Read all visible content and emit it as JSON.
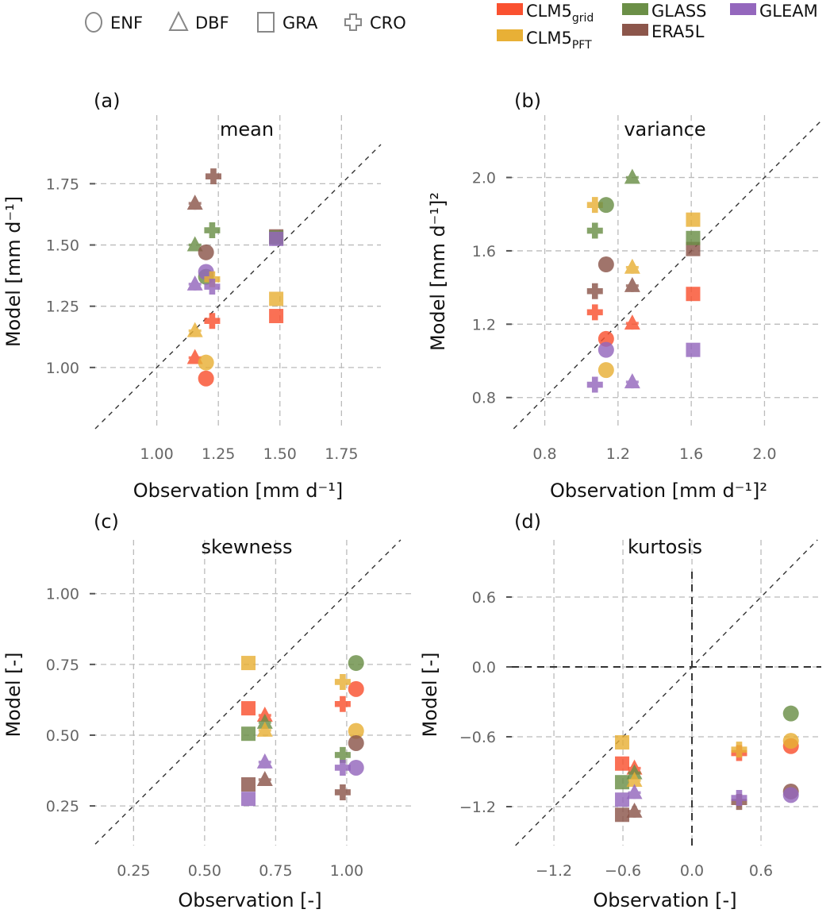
{
  "legend": {
    "shapes": [
      {
        "pft": "ENF",
        "shape": "circle"
      },
      {
        "pft": "DBF",
        "shape": "triangle"
      },
      {
        "pft": "GRA",
        "shape": "square"
      },
      {
        "pft": "CRO",
        "shape": "plus"
      }
    ],
    "models": [
      {
        "key": "CLM5grid",
        "base": "CLM5",
        "sub": "grid",
        "color": "#fa5130"
      },
      {
        "key": "GLASS",
        "base": "GLASS",
        "sub": "",
        "color": "#6b8f47"
      },
      {
        "key": "GLEAM",
        "base": "GLEAM",
        "sub": "",
        "color": "#9467bd"
      },
      {
        "key": "CLM5PFT",
        "base": "CLM5",
        "sub": "PFT",
        "color": "#e8b036"
      },
      {
        "key": "ERA5L",
        "base": "ERA5L",
        "sub": "",
        "color": "#8c564b"
      }
    ]
  },
  "chart_data": [
    {
      "type": "scatter",
      "panel": "(a)",
      "title": "mean",
      "xlabel": "Observation [mm d⁻¹]",
      "ylabel": "Model [mm d⁻¹]",
      "xlim": [
        0.75,
        1.91
      ],
      "ylim": [
        0.75,
        2.03
      ],
      "xticks": [
        1.0,
        1.25,
        1.5,
        1.75
      ],
      "xtick_labels": [
        "1.00",
        "1.25",
        "1.50",
        "1.75"
      ],
      "yticks": [
        1.0,
        1.25,
        1.5,
        1.75
      ],
      "ytick_labels": [
        "1.00",
        "1.25",
        "1.50",
        "1.75"
      ],
      "grid": true,
      "one_to_one_line": true,
      "points": [
        {
          "model": "ERA5L",
          "pft": "CRO",
          "x": 1.23,
          "y": 1.78
        },
        {
          "model": "ERA5L",
          "pft": "DBF",
          "x": 1.155,
          "y": 1.67
        },
        {
          "model": "GLASS",
          "pft": "CRO",
          "x": 1.225,
          "y": 1.56
        },
        {
          "model": "GLASS",
          "pft": "DBF",
          "x": 1.155,
          "y": 1.5
        },
        {
          "model": "ERA5L",
          "pft": "ENF",
          "x": 1.2,
          "y": 1.47
        },
        {
          "model": "GLASS",
          "pft": "ENF",
          "x": 1.2,
          "y": 1.37
        },
        {
          "model": "GLEAM",
          "pft": "ENF",
          "x": 1.2,
          "y": 1.39
        },
        {
          "model": "CLM5PFT",
          "pft": "CRO",
          "x": 1.225,
          "y": 1.36
        },
        {
          "model": "GLEAM",
          "pft": "DBF",
          "x": 1.155,
          "y": 1.34
        },
        {
          "model": "GLEAM",
          "pft": "CRO",
          "x": 1.225,
          "y": 1.33
        },
        {
          "model": "ERA5L",
          "pft": "GRA",
          "x": 1.485,
          "y": 1.535
        },
        {
          "model": "GLASS",
          "pft": "GRA",
          "x": 1.485,
          "y": 1.53
        },
        {
          "model": "GLEAM",
          "pft": "GRA",
          "x": 1.485,
          "y": 1.525
        },
        {
          "model": "CLM5PFT",
          "pft": "GRA",
          "x": 1.485,
          "y": 1.28
        },
        {
          "model": "CLM5grid",
          "pft": "GRA",
          "x": 1.485,
          "y": 1.21
        },
        {
          "model": "CLM5grid",
          "pft": "CRO",
          "x": 1.225,
          "y": 1.19
        },
        {
          "model": "CLM5PFT",
          "pft": "DBF",
          "x": 1.155,
          "y": 1.15
        },
        {
          "model": "CLM5grid",
          "pft": "DBF",
          "x": 1.155,
          "y": 1.04
        },
        {
          "model": "CLM5PFT",
          "pft": "ENF",
          "x": 1.2,
          "y": 1.02
        },
        {
          "model": "CLM5grid",
          "pft": "ENF",
          "x": 1.2,
          "y": 0.955
        }
      ]
    },
    {
      "type": "scatter",
      "panel": "(b)",
      "title": "variance",
      "xlabel": "Observation [mm d⁻¹]²",
      "ylabel": "Model [mm d⁻¹]²",
      "xlim": [
        0.62,
        2.31
      ],
      "ylim": [
        0.63,
        2.34
      ],
      "xticks": [
        0.8,
        1.2,
        1.6,
        2.0
      ],
      "xtick_labels": [
        "0.8",
        "1.2",
        "1.6",
        "2.0"
      ],
      "yticks": [
        0.8,
        1.2,
        1.6,
        2.0
      ],
      "ytick_labels": [
        "0.8",
        "1.2",
        "1.6",
        "2.0"
      ],
      "grid": true,
      "one_to_one_line": true,
      "points": [
        {
          "model": "GLASS",
          "pft": "DBF",
          "x": 1.278,
          "y": 2.0
        },
        {
          "model": "CLM5PFT",
          "pft": "CRO",
          "x": 1.074,
          "y": 1.85
        },
        {
          "model": "GLASS",
          "pft": "ENF",
          "x": 1.135,
          "y": 1.85
        },
        {
          "model": "GLASS",
          "pft": "CRO",
          "x": 1.074,
          "y": 1.71
        },
        {
          "model": "CLM5PFT",
          "pft": "GRA",
          "x": 1.61,
          "y": 1.77
        },
        {
          "model": "ERA5L",
          "pft": "GRA",
          "x": 1.61,
          "y": 1.61
        },
        {
          "model": "GLASS",
          "pft": "GRA",
          "x": 1.61,
          "y": 1.67
        },
        {
          "model": "ERA5L",
          "pft": "ENF",
          "x": 1.135,
          "y": 1.526
        },
        {
          "model": "CLM5PFT",
          "pft": "DBF",
          "x": 1.278,
          "y": 1.51
        },
        {
          "model": "ERA5L",
          "pft": "DBF",
          "x": 1.278,
          "y": 1.41
        },
        {
          "model": "ERA5L",
          "pft": "CRO",
          "x": 1.074,
          "y": 1.38
        },
        {
          "model": "CLM5grid",
          "pft": "GRA",
          "x": 1.61,
          "y": 1.365
        },
        {
          "model": "CLM5grid",
          "pft": "CRO",
          "x": 1.074,
          "y": 1.265
        },
        {
          "model": "CLM5grid",
          "pft": "DBF",
          "x": 1.278,
          "y": 1.205
        },
        {
          "model": "CLM5grid",
          "pft": "ENF",
          "x": 1.135,
          "y": 1.12
        },
        {
          "model": "GLEAM",
          "pft": "ENF",
          "x": 1.135,
          "y": 1.06
        },
        {
          "model": "GLEAM",
          "pft": "GRA",
          "x": 1.61,
          "y": 1.06
        },
        {
          "model": "CLM5PFT",
          "pft": "ENF",
          "x": 1.135,
          "y": 0.95
        },
        {
          "model": "GLEAM",
          "pft": "CRO",
          "x": 1.074,
          "y": 0.87
        },
        {
          "model": "GLEAM",
          "pft": "DBF",
          "x": 1.278,
          "y": 0.885
        }
      ]
    },
    {
      "type": "scatter",
      "panel": "(c)",
      "title": "skewness",
      "xlabel": "Observation [-]",
      "ylabel": "Model [-]",
      "xlim": [
        0.115,
        1.232
      ],
      "ylim": [
        0.11,
        1.19
      ],
      "xticks": [
        0.25,
        0.5,
        0.75,
        1.0
      ],
      "xtick_labels": [
        "0.25",
        "0.50",
        "0.75",
        "1.00"
      ],
      "yticks": [
        0.25,
        0.5,
        0.75,
        1.0
      ],
      "ytick_labels": [
        "0.25",
        "0.50",
        "0.75",
        "1.00"
      ],
      "grid": true,
      "one_to_one_line": true,
      "points": [
        {
          "model": "CLM5PFT",
          "pft": "GRA",
          "x": 0.654,
          "y": 0.755
        },
        {
          "model": "CLM5grid",
          "pft": "GRA",
          "x": 0.654,
          "y": 0.595
        },
        {
          "model": "GLASS",
          "pft": "GRA",
          "x": 0.654,
          "y": 0.505
        },
        {
          "model": "ERA5L",
          "pft": "GRA",
          "x": 0.654,
          "y": 0.326
        },
        {
          "model": "GLEAM",
          "pft": "GRA",
          "x": 0.654,
          "y": 0.275
        },
        {
          "model": "CLM5grid",
          "pft": "DBF",
          "x": 0.712,
          "y": 0.57
        },
        {
          "model": "GLASS",
          "pft": "DBF",
          "x": 0.712,
          "y": 0.545
        },
        {
          "model": "CLM5PFT",
          "pft": "DBF",
          "x": 0.712,
          "y": 0.517
        },
        {
          "model": "GLEAM",
          "pft": "DBF",
          "x": 0.712,
          "y": 0.405
        },
        {
          "model": "ERA5L",
          "pft": "DBF",
          "x": 0.712,
          "y": 0.343
        },
        {
          "model": "GLASS",
          "pft": "ENF",
          "x": 1.033,
          "y": 0.755
        },
        {
          "model": "CLM5grid",
          "pft": "ENF",
          "x": 1.033,
          "y": 0.663
        },
        {
          "model": "CLM5PFT",
          "pft": "CRO",
          "x": 0.986,
          "y": 0.688
        },
        {
          "model": "CLM5grid",
          "pft": "CRO",
          "x": 0.986,
          "y": 0.61
        },
        {
          "model": "CLM5PFT",
          "pft": "ENF",
          "x": 1.033,
          "y": 0.515
        },
        {
          "model": "ERA5L",
          "pft": "ENF",
          "x": 1.033,
          "y": 0.472
        },
        {
          "model": "GLASS",
          "pft": "CRO",
          "x": 0.986,
          "y": 0.43
        },
        {
          "model": "GLEAM",
          "pft": "CRO",
          "x": 0.986,
          "y": 0.385
        },
        {
          "model": "GLEAM",
          "pft": "ENF",
          "x": 1.033,
          "y": 0.385
        },
        {
          "model": "ERA5L",
          "pft": "CRO",
          "x": 0.986,
          "y": 0.298
        }
      ]
    },
    {
      "type": "scatter",
      "panel": "(d)",
      "title": "kurtosis",
      "xlabel": "Observation [-]",
      "ylabel": "Model [-]",
      "xlim": [
        -1.566,
        1.124
      ],
      "ylim": [
        -1.534,
        1.091
      ],
      "xticks": [
        -1.2,
        -0.6,
        0.0,
        0.6
      ],
      "xtick_labels": [
        "−1.2",
        "−0.6",
        "0.0",
        "0.6"
      ],
      "yticks": [
        -1.2,
        -0.6,
        0.0,
        0.6
      ],
      "ytick_labels": [
        "−1.2",
        "−0.6",
        "0.0",
        "0.6"
      ],
      "grid": true,
      "one_to_one_line": true,
      "zero_lines": true,
      "points": [
        {
          "model": "CLM5PFT",
          "pft": "GRA",
          "x": -0.607,
          "y": -0.648
        },
        {
          "model": "CLM5grid",
          "pft": "GRA",
          "x": -0.607,
          "y": -0.83
        },
        {
          "model": "GLASS",
          "pft": "GRA",
          "x": -0.607,
          "y": -0.99
        },
        {
          "model": "GLEAM",
          "pft": "GRA",
          "x": -0.607,
          "y": -1.14
        },
        {
          "model": "ERA5L",
          "pft": "GRA",
          "x": -0.607,
          "y": -1.27
        },
        {
          "model": "CLM5grid",
          "pft": "DBF",
          "x": -0.5,
          "y": -0.87
        },
        {
          "model": "GLASS",
          "pft": "DBF",
          "x": -0.5,
          "y": -0.91
        },
        {
          "model": "CLM5PFT",
          "pft": "DBF",
          "x": -0.5,
          "y": -0.975
        },
        {
          "model": "GLEAM",
          "pft": "DBF",
          "x": -0.5,
          "y": -1.08
        },
        {
          "model": "ERA5L",
          "pft": "DBF",
          "x": -0.5,
          "y": -1.24
        },
        {
          "model": "GLASS",
          "pft": "ENF",
          "x": 0.86,
          "y": -0.4
        },
        {
          "model": "CLM5grid",
          "pft": "ENF",
          "x": 0.86,
          "y": -0.68
        },
        {
          "model": "CLM5PFT",
          "pft": "ENF",
          "x": 0.86,
          "y": -0.635
        },
        {
          "model": "ERA5L",
          "pft": "ENF",
          "x": 0.86,
          "y": -1.07
        },
        {
          "model": "GLEAM",
          "pft": "ENF",
          "x": 0.86,
          "y": -1.1
        },
        {
          "model": "CLM5grid",
          "pft": "CRO",
          "x": 0.41,
          "y": -0.74
        },
        {
          "model": "CLM5PFT",
          "pft": "CRO",
          "x": 0.41,
          "y": -0.71
        },
        {
          "model": "ERA5L",
          "pft": "CRO",
          "x": 0.41,
          "y": -1.16
        },
        {
          "model": "GLEAM",
          "pft": "CRO",
          "x": 0.41,
          "y": -1.125
        }
      ]
    }
  ]
}
